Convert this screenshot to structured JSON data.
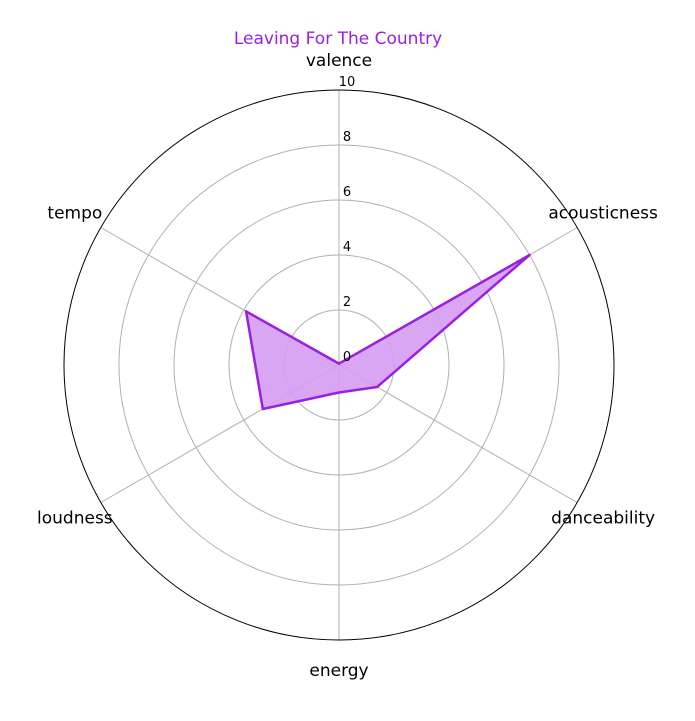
{
  "chart_data": {
    "type": "radar",
    "title": "Leaving For The Country",
    "axes": [
      "valence",
      "acousticness",
      "danceability",
      "energy",
      "loudness",
      "tempo"
    ],
    "series": [
      {
        "values": [
          0.05,
          8.0,
          1.6,
          1.0,
          3.2,
          3.9
        ]
      }
    ],
    "rlim": [
      0,
      10
    ],
    "r_ticks": [
      "0",
      "2",
      "4",
      "6",
      "8",
      "10"
    ],
    "grid": true,
    "colors": {
      "title": "#9b1fe0",
      "line": "#9b1fe0",
      "fill": "#d49cf2",
      "grid": "#b0b0b0",
      "frame": "#000000"
    }
  }
}
